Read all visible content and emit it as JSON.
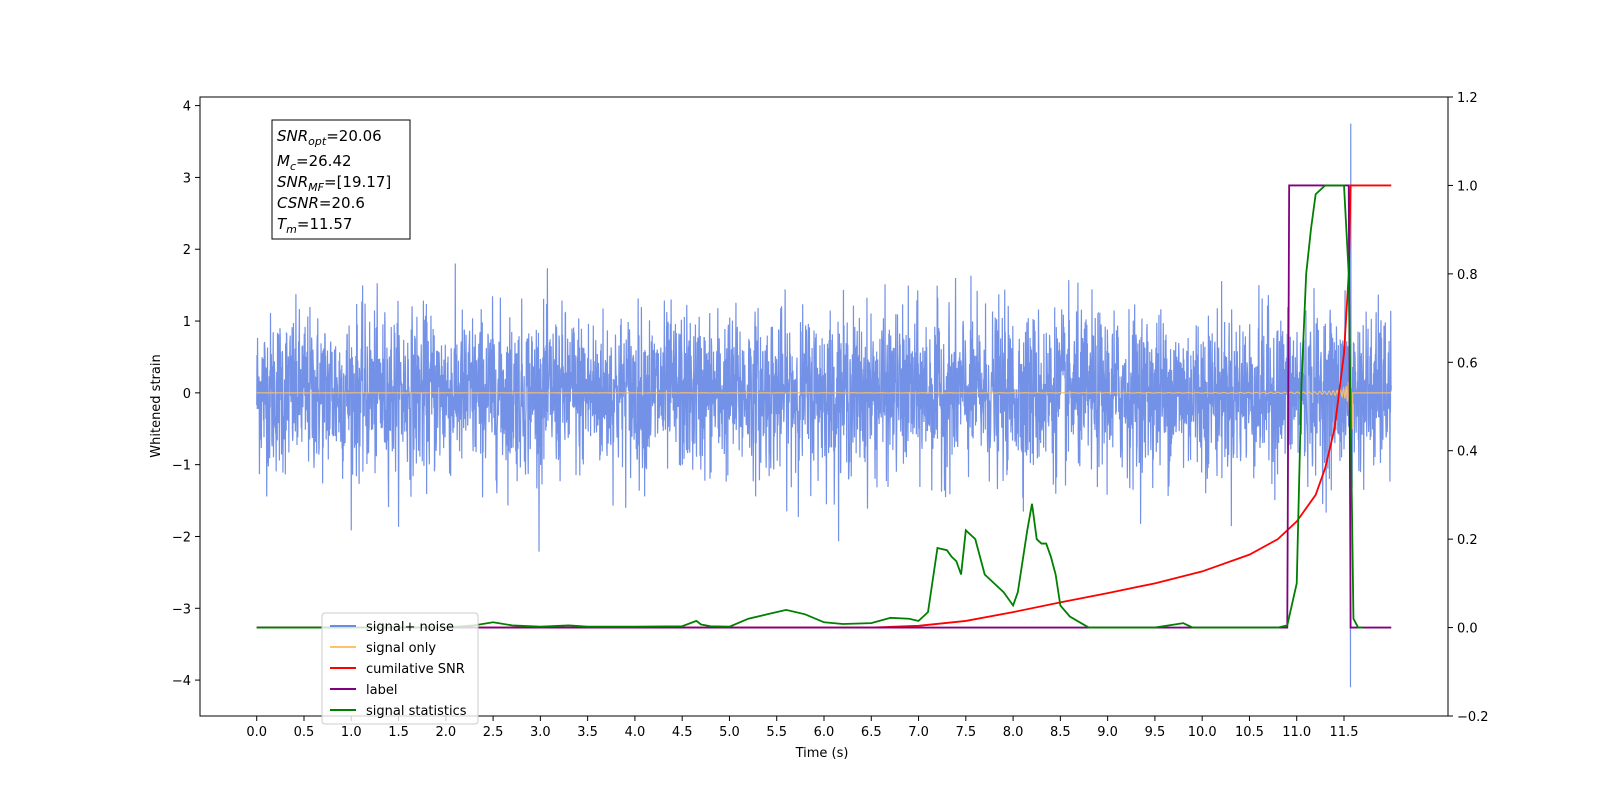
{
  "chart_data": {
    "type": "line",
    "xlabel": "Time (s)",
    "ylabel_left": "Whitened strain",
    "ylabel_right": "",
    "xlim": [
      -0.6,
      12.6
    ],
    "ylim_left": [
      -4.5,
      4.12
    ],
    "ylim_right": [
      -0.2,
      1.2
    ],
    "x_ticks": [
      "0.0",
      "0.5",
      "1.0",
      "1.5",
      "2.0",
      "2.5",
      "3.0",
      "3.5",
      "4.0",
      "4.5",
      "5.0",
      "5.5",
      "6.0",
      "6.5",
      "7.0",
      "7.5",
      "8.0",
      "8.5",
      "9.0",
      "9.5",
      "10.0",
      "10.5",
      "11.0",
      "11.5"
    ],
    "y_ticks_left": [
      "4",
      "3",
      "2",
      "1",
      "0",
      "−1",
      "−2",
      "−3",
      "−4"
    ],
    "y_ticks_right": [
      "1.2",
      "1.0",
      "0.8",
      "0.6",
      "0.4",
      "0.2",
      "0.0",
      "−0.2"
    ],
    "grid": false,
    "legend_position": "lower-left",
    "series": [
      {
        "name": "signal+ noise",
        "color": "#6b8be6",
        "axis": "left",
        "kind": "noise",
        "x_range": [
          0.0,
          12.0
        ],
        "typical_amplitude": 1.0,
        "peak_range": [
          -4.1,
          3.75
        ],
        "peak_time": 11.57
      },
      {
        "name": "signal only",
        "color": "#ffc266",
        "axis": "left",
        "kind": "chirp",
        "x_range": [
          0.0,
          12.0
        ],
        "merger_time": 11.57,
        "max_amplitude": 1.6
      },
      {
        "name": "cumilative SNR",
        "color": "#ff0000",
        "axis": "right",
        "x": [
          0.0,
          6.5,
          7.0,
          7.5,
          8.0,
          8.5,
          9.0,
          9.5,
          10.0,
          10.5,
          10.8,
          11.0,
          11.2,
          11.3,
          11.4,
          11.5,
          11.55,
          11.57,
          11.6,
          12.0
        ],
        "values": [
          0.0,
          0.0,
          0.004,
          0.015,
          0.035,
          0.057,
          0.078,
          0.1,
          0.127,
          0.165,
          0.2,
          0.24,
          0.3,
          0.36,
          0.45,
          0.62,
          0.8,
          1.0,
          1.0,
          1.0
        ]
      },
      {
        "name": "label",
        "color": "#800080",
        "axis": "right",
        "x": [
          0.0,
          10.9,
          10.92,
          11.55,
          11.57,
          11.6,
          12.0
        ],
        "values": [
          0.0,
          0.0,
          1.0,
          1.0,
          0.0,
          0.0,
          0.0
        ]
      },
      {
        "name": "signal statistics",
        "color": "#008000",
        "axis": "right",
        "x": [
          0.0,
          2.0,
          2.3,
          2.5,
          2.7,
          3.0,
          3.3,
          3.5,
          4.0,
          4.5,
          4.65,
          4.7,
          4.8,
          5.0,
          5.2,
          5.4,
          5.6,
          5.8,
          6.0,
          6.2,
          6.5,
          6.7,
          6.9,
          7.0,
          7.1,
          7.2,
          7.3,
          7.35,
          7.4,
          7.45,
          7.5,
          7.6,
          7.7,
          7.8,
          7.9,
          8.0,
          8.05,
          8.1,
          8.15,
          8.2,
          8.25,
          8.3,
          8.35,
          8.4,
          8.45,
          8.5,
          8.6,
          8.8,
          9.0,
          9.5,
          9.8,
          9.9,
          10.5,
          10.8,
          10.9,
          11.0,
          11.05,
          11.1,
          11.15,
          11.2,
          11.3,
          11.5,
          11.55,
          11.6,
          11.65,
          11.7
        ],
        "values": [
          0.0,
          0.0,
          0.005,
          0.012,
          0.005,
          0.002,
          0.005,
          0.002,
          0.002,
          0.003,
          0.015,
          0.007,
          0.003,
          0.002,
          0.02,
          0.03,
          0.04,
          0.03,
          0.012,
          0.008,
          0.01,
          0.022,
          0.02,
          0.015,
          0.035,
          0.18,
          0.175,
          0.16,
          0.15,
          0.12,
          0.22,
          0.2,
          0.12,
          0.1,
          0.08,
          0.05,
          0.08,
          0.15,
          0.22,
          0.28,
          0.2,
          0.19,
          0.19,
          0.16,
          0.12,
          0.05,
          0.025,
          0.0,
          0.0,
          0.0,
          0.01,
          0.0,
          0.0,
          0.0,
          0.005,
          0.1,
          0.55,
          0.8,
          0.9,
          0.98,
          1.0,
          1.0,
          0.8,
          0.02,
          0.0,
          0.0
        ]
      }
    ]
  },
  "info_box": {
    "lines": [
      {
        "sym": "SNR",
        "sub": "opt",
        "value": "=20.06"
      },
      {
        "sym": "M",
        "sub": "c",
        "value": "=26.42"
      },
      {
        "sym": "SNR",
        "sub": "MF",
        "value": "=[19.17]"
      },
      {
        "sym": "CSNR",
        "sub": "",
        "value": "=20.6"
      },
      {
        "sym": "T",
        "sub": "m",
        "value": "=11.57"
      }
    ]
  }
}
